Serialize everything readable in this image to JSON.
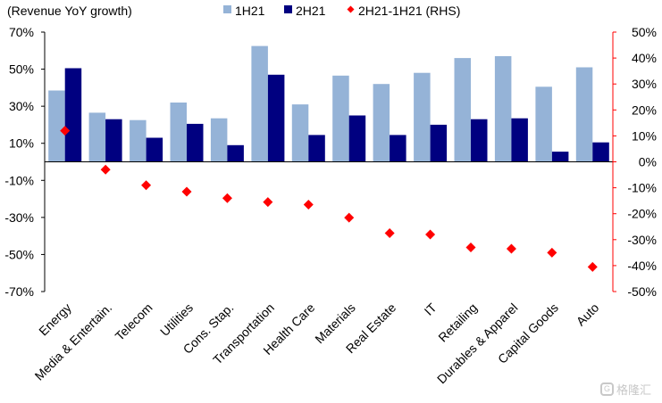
{
  "chart_data": {
    "type": "bar",
    "title": "(Revenue YoY growth)",
    "categories": [
      "Energy",
      "Media & Entertain.",
      "Telecom",
      "Utilities",
      "Cons. Stap.",
      "Transportation",
      "Health Care",
      "Materials",
      "Real Estate",
      "IT",
      "Retailing",
      "Durables & Apparel",
      "Capital Goods",
      "Auto"
    ],
    "series": [
      {
        "name": "1H21",
        "axis": "left",
        "kind": "bar",
        "color": "#95B3D7",
        "values": [
          38.5,
          26.5,
          22.5,
          32,
          23.5,
          62.5,
          31,
          46.5,
          42,
          48,
          56,
          57,
          40.5,
          51
        ]
      },
      {
        "name": "2H21",
        "axis": "left",
        "kind": "bar",
        "color": "#000080",
        "values": [
          50.5,
          23,
          13,
          20.5,
          9,
          47,
          14.5,
          25,
          14.5,
          20,
          23,
          23.5,
          5.5,
          10.5
        ]
      },
      {
        "name": "2H21-1H21 (RHS)",
        "axis": "right",
        "kind": "marker",
        "color": "#FF0000",
        "values": [
          12,
          -3,
          -9,
          -11.5,
          -14,
          -15.5,
          -16.5,
          -21.5,
          -27.5,
          -28,
          -33,
          -33.5,
          -35,
          -40.5
        ]
      }
    ],
    "y_left": {
      "min": -70,
      "max": 70,
      "ticks": [
        70,
        50,
        30,
        10,
        -10,
        -30,
        -50,
        -70
      ],
      "tick_labels": [
        "70%",
        "50%",
        "30%",
        "10%",
        "-10%",
        "-30%",
        "-50%",
        "-70%"
      ]
    },
    "y_right": {
      "min": -50,
      "max": 50,
      "ticks": [
        50,
        40,
        30,
        20,
        10,
        0,
        -10,
        -20,
        -30,
        -40,
        -50
      ],
      "tick_labels": [
        "50%",
        "40%",
        "30%",
        "20%",
        "10%",
        "0%",
        "-10%",
        "-20%",
        "-30%",
        "-40%",
        "-50%"
      ]
    },
    "legend": {
      "placement": "top"
    },
    "grid": false,
    "right_axis_color": "#FF0000"
  },
  "watermark": {
    "text": "格隆汇",
    "icon_glyph": "G"
  }
}
